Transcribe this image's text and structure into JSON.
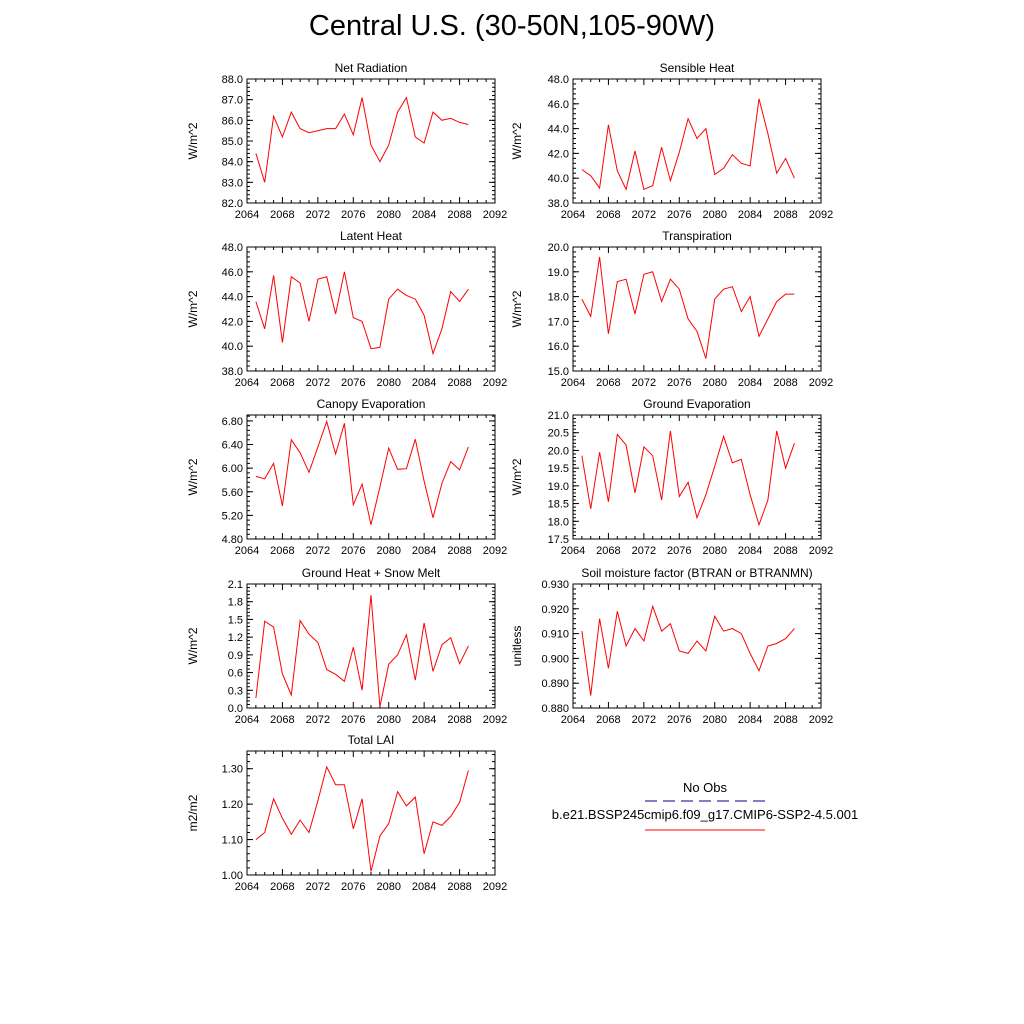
{
  "page": {
    "title": "Central U.S. (30-50N,105-90W)"
  },
  "colors": {
    "model_line": "#ff0000",
    "obs_line": "#00008b",
    "axis": "#000000"
  },
  "legend": {
    "obs_label": "No Obs",
    "model_label": "b.e21.BSSP245cmip6.f09_g17.CMIP6-SSP2-4.5.001"
  },
  "chart_data": [
    {
      "type": "line",
      "title": "Net Radiation",
      "xlabel": "",
      "ylabel": "W/m^2",
      "xlim": [
        2064,
        2092
      ],
      "ylim": [
        82.0,
        88.0
      ],
      "xticks": [
        "2064",
        "2068",
        "2072",
        "2076",
        "2080",
        "2084",
        "2088",
        "2092"
      ],
      "yticks": [
        "82.0",
        "83.0",
        "84.0",
        "85.0",
        "86.0",
        "87.0",
        "88.0"
      ],
      "series": [
        {
          "x": [
            2065,
            2066,
            2067,
            2068,
            2069,
            2070,
            2071,
            2072,
            2073,
            2074,
            2075,
            2076,
            2077,
            2078,
            2079,
            2080,
            2081,
            2082,
            2083,
            2084,
            2085,
            2086,
            2087,
            2088,
            2089
          ],
          "values": [
            84.4,
            83.0,
            86.2,
            85.2,
            86.4,
            85.6,
            85.4,
            85.5,
            85.6,
            85.6,
            86.3,
            85.3,
            87.1,
            84.8,
            84.0,
            84.8,
            86.4,
            87.1,
            85.2,
            84.9,
            86.4,
            86.0,
            86.1,
            85.9,
            85.8
          ]
        }
      ]
    },
    {
      "type": "line",
      "title": "Sensible Heat",
      "xlabel": "",
      "ylabel": "W/m^2",
      "xlim": [
        2064,
        2092
      ],
      "ylim": [
        38.0,
        48.0
      ],
      "xticks": [
        "2064",
        "2068",
        "2072",
        "2076",
        "2080",
        "2084",
        "2088",
        "2092"
      ],
      "yticks": [
        "38.0",
        "40.0",
        "42.0",
        "44.0",
        "46.0",
        "48.0"
      ],
      "series": [
        {
          "x": [
            2065,
            2066,
            2067,
            2068,
            2069,
            2070,
            2071,
            2072,
            2073,
            2074,
            2075,
            2076,
            2077,
            2078,
            2079,
            2080,
            2081,
            2082,
            2083,
            2084,
            2085,
            2086,
            2087,
            2088,
            2089
          ],
          "values": [
            40.7,
            40.2,
            39.2,
            44.3,
            40.6,
            39.1,
            42.2,
            39.1,
            39.4,
            42.5,
            39.8,
            42.1,
            44.8,
            43.2,
            44.0,
            40.3,
            40.8,
            41.9,
            41.2,
            41.0,
            46.4,
            43.6,
            40.4,
            41.6,
            40.0
          ]
        }
      ]
    },
    {
      "type": "line",
      "title": "Latent Heat",
      "xlabel": "",
      "ylabel": "W/m^2",
      "xlim": [
        2064,
        2092
      ],
      "ylim": [
        38.0,
        48.0
      ],
      "xticks": [
        "2064",
        "2068",
        "2072",
        "2076",
        "2080",
        "2084",
        "2088",
        "2092"
      ],
      "yticks": [
        "38.0",
        "40.0",
        "42.0",
        "44.0",
        "46.0",
        "48.0"
      ],
      "series": [
        {
          "x": [
            2065,
            2066,
            2067,
            2068,
            2069,
            2070,
            2071,
            2072,
            2073,
            2074,
            2075,
            2076,
            2077,
            2078,
            2079,
            2080,
            2081,
            2082,
            2083,
            2084,
            2085,
            2086,
            2087,
            2088,
            2089
          ],
          "values": [
            43.6,
            41.4,
            45.7,
            40.3,
            45.6,
            45.1,
            42.0,
            45.4,
            45.6,
            42.6,
            46.0,
            42.3,
            42.0,
            39.8,
            39.9,
            43.8,
            44.6,
            44.1,
            43.8,
            42.5,
            39.4,
            41.4,
            44.4,
            43.6,
            44.6
          ]
        }
      ]
    },
    {
      "type": "line",
      "title": "Transpiration",
      "xlabel": "",
      "ylabel": "W/m^2",
      "xlim": [
        2064,
        2092
      ],
      "ylim": [
        15.0,
        20.0
      ],
      "xticks": [
        "2064",
        "2068",
        "2072",
        "2076",
        "2080",
        "2084",
        "2088",
        "2092"
      ],
      "yticks": [
        "15.0",
        "16.0",
        "17.0",
        "18.0",
        "19.0",
        "20.0"
      ],
      "series": [
        {
          "x": [
            2065,
            2066,
            2067,
            2068,
            2069,
            2070,
            2071,
            2072,
            2073,
            2074,
            2075,
            2076,
            2077,
            2078,
            2079,
            2080,
            2081,
            2082,
            2083,
            2084,
            2085,
            2086,
            2087,
            2088,
            2089
          ],
          "values": [
            17.9,
            17.2,
            19.6,
            16.5,
            18.6,
            18.7,
            17.3,
            18.9,
            19.0,
            17.8,
            18.7,
            18.3,
            17.1,
            16.6,
            15.5,
            17.9,
            18.3,
            18.4,
            17.4,
            18.0,
            16.4,
            17.1,
            17.8,
            18.1,
            18.1
          ]
        }
      ]
    },
    {
      "type": "line",
      "title": "Canopy Evaporation",
      "xlabel": "",
      "ylabel": "W/m^2",
      "xlim": [
        2064,
        2092
      ],
      "ylim": [
        4.8,
        6.9
      ],
      "xticks": [
        "2064",
        "2068",
        "2072",
        "2076",
        "2080",
        "2084",
        "2088",
        "2092"
      ],
      "yticks": [
        "4.80",
        "5.20",
        "5.60",
        "6.00",
        "6.40",
        "6.80"
      ],
      "series": [
        {
          "x": [
            2065,
            2066,
            2067,
            2068,
            2069,
            2070,
            2071,
            2072,
            2073,
            2074,
            2075,
            2076,
            2077,
            2078,
            2079,
            2080,
            2081,
            2082,
            2083,
            2084,
            2085,
            2086,
            2087,
            2088,
            2089
          ],
          "values": [
            5.86,
            5.82,
            6.08,
            5.36,
            6.48,
            6.26,
            5.93,
            6.36,
            6.79,
            6.24,
            6.76,
            5.38,
            5.73,
            5.04,
            5.68,
            6.34,
            5.98,
            5.99,
            6.49,
            5.78,
            5.16,
            5.74,
            6.11,
            5.97,
            6.36
          ]
        }
      ]
    },
    {
      "type": "line",
      "title": "Ground Evaporation",
      "xlabel": "",
      "ylabel": "W/m^2",
      "xlim": [
        2064,
        2092
      ],
      "ylim": [
        17.5,
        21.0
      ],
      "xticks": [
        "2064",
        "2068",
        "2072",
        "2076",
        "2080",
        "2084",
        "2088",
        "2092"
      ],
      "yticks": [
        "17.5",
        "18.0",
        "18.5",
        "19.0",
        "19.5",
        "20.0",
        "20.5",
        "21.0"
      ],
      "series": [
        {
          "x": [
            2065,
            2066,
            2067,
            2068,
            2069,
            2070,
            2071,
            2072,
            2073,
            2074,
            2075,
            2076,
            2077,
            2078,
            2079,
            2080,
            2081,
            2082,
            2083,
            2084,
            2085,
            2086,
            2087,
            2088,
            2089
          ],
          "values": [
            19.85,
            18.35,
            19.95,
            18.55,
            20.45,
            20.15,
            18.8,
            20.1,
            19.85,
            18.6,
            20.55,
            18.7,
            19.1,
            18.1,
            18.75,
            19.55,
            20.4,
            19.65,
            19.75,
            18.75,
            17.9,
            18.6,
            20.55,
            19.5,
            20.2
          ]
        }
      ]
    },
    {
      "type": "line",
      "title": "Ground Heat + Snow Melt",
      "xlabel": "",
      "ylabel": "W/m^2",
      "xlim": [
        2064,
        2092
      ],
      "ylim": [
        0.0,
        2.1
      ],
      "xticks": [
        "2064",
        "2068",
        "2072",
        "2076",
        "2080",
        "2084",
        "2088",
        "2092"
      ],
      "yticks": [
        "0.0",
        "0.3",
        "0.6",
        "0.9",
        "1.2",
        "1.5",
        "1.8",
        "2.1"
      ],
      "series": [
        {
          "x": [
            2065,
            2066,
            2067,
            2068,
            2069,
            2070,
            2071,
            2072,
            2073,
            2074,
            2075,
            2076,
            2077,
            2078,
            2079,
            2080,
            2081,
            2082,
            2083,
            2084,
            2085,
            2086,
            2087,
            2088,
            2089
          ],
          "values": [
            0.17,
            1.47,
            1.37,
            0.58,
            0.22,
            1.48,
            1.25,
            1.11,
            0.65,
            0.57,
            0.45,
            1.03,
            0.3,
            1.91,
            0.02,
            0.74,
            0.9,
            1.24,
            0.47,
            1.44,
            0.62,
            1.07,
            1.19,
            0.75,
            1.05
          ]
        }
      ]
    },
    {
      "type": "line",
      "title": "Soil moisture factor (BTRAN or BTRANMN)",
      "xlabel": "",
      "ylabel": "unitless",
      "xlim": [
        2064,
        2092
      ],
      "ylim": [
        0.88,
        0.93
      ],
      "xticks": [
        "2064",
        "2068",
        "2072",
        "2076",
        "2080",
        "2084",
        "2088",
        "2092"
      ],
      "yticks": [
        "0.880",
        "0.890",
        "0.900",
        "0.910",
        "0.920",
        "0.930"
      ],
      "series": [
        {
          "x": [
            2065,
            2066,
            2067,
            2068,
            2069,
            2070,
            2071,
            2072,
            2073,
            2074,
            2075,
            2076,
            2077,
            2078,
            2079,
            2080,
            2081,
            2082,
            2083,
            2084,
            2085,
            2086,
            2087,
            2088,
            2089
          ],
          "values": [
            0.911,
            0.885,
            0.916,
            0.896,
            0.919,
            0.905,
            0.912,
            0.907,
            0.921,
            0.911,
            0.914,
            0.903,
            0.902,
            0.907,
            0.903,
            0.917,
            0.911,
            0.912,
            0.91,
            0.902,
            0.895,
            0.905,
            0.906,
            0.908,
            0.912
          ]
        }
      ]
    },
    {
      "type": "line",
      "title": "Total LAI",
      "xlabel": "",
      "ylabel": "m2/m2",
      "xlim": [
        2064,
        2092
      ],
      "ylim": [
        1.0,
        1.35
      ],
      "xticks": [
        "2064",
        "2068",
        "2072",
        "2076",
        "2080",
        "2084",
        "2088",
        "2092"
      ],
      "yticks": [
        "1.00",
        "1.10",
        "1.20",
        "1.30"
      ],
      "series": [
        {
          "x": [
            2065,
            2066,
            2067,
            2068,
            2069,
            2070,
            2071,
            2072,
            2073,
            2074,
            2075,
            2076,
            2077,
            2078,
            2079,
            2080,
            2081,
            2082,
            2083,
            2084,
            2085,
            2086,
            2087,
            2088,
            2089
          ],
          "values": [
            1.1,
            1.12,
            1.215,
            1.16,
            1.115,
            1.155,
            1.12,
            1.21,
            1.305,
            1.255,
            1.255,
            1.13,
            1.215,
            1.01,
            1.11,
            1.145,
            1.235,
            1.195,
            1.22,
            1.06,
            1.15,
            1.14,
            1.165,
            1.205,
            1.295
          ]
        }
      ]
    }
  ]
}
